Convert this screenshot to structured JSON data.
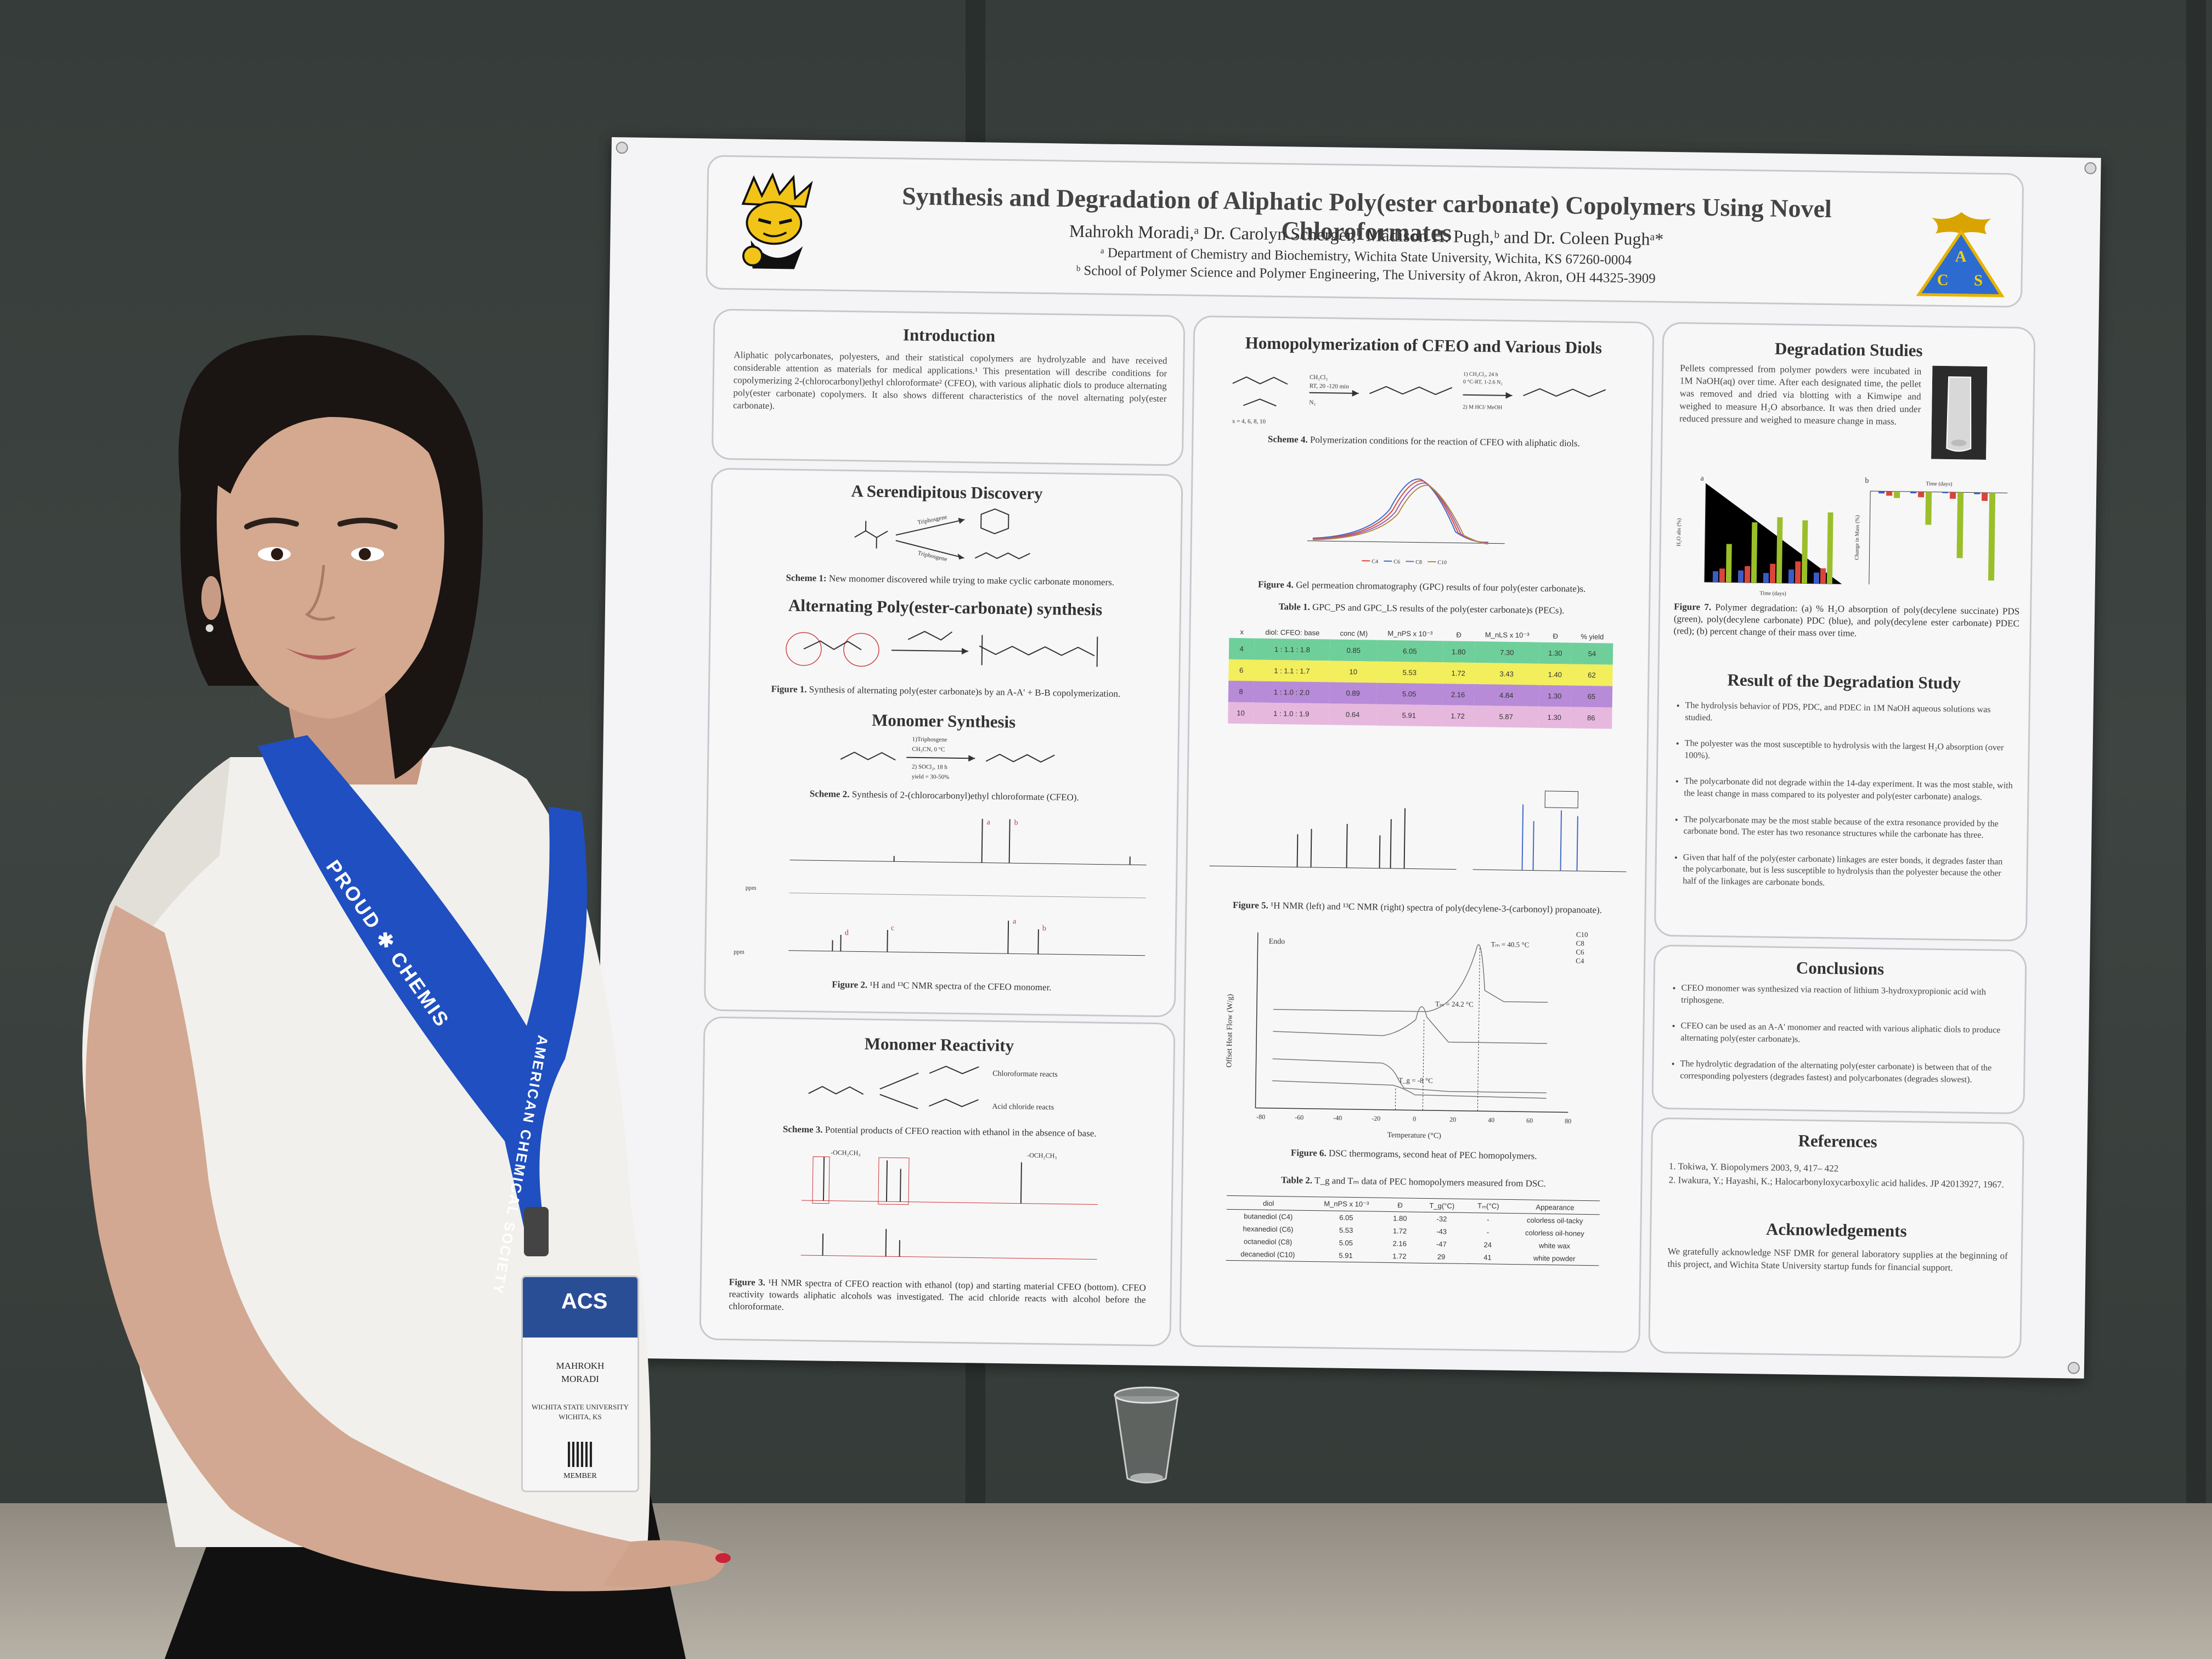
{
  "poster": {
    "title": "Synthesis and Degradation of Aliphatic Poly(ester carbonate) Copolymers Using Novel Chloroformates",
    "authors": "Mahrokh Moradi,ᵃ Dr. Carolyn Scherger,ᵇ Madison H. Pugh,ᵇ and Dr. Coleen Pughᵃ*",
    "affiliation_a": "ᵃ Department of Chemistry and Biochemistry, Wichita State University, Wichita, KS 67260-0004",
    "affiliation_b": "ᵇ School of Polymer Science and Polymer Engineering, The University of Akron, Akron, OH 44325-3909",
    "acs_logo_letters": [
      "A",
      "C",
      "S"
    ],
    "introduction": {
      "heading": "Introduction",
      "text": "Aliphatic polycarbonates, polyesters, and their statistical copolymers are hydrolyzable and have received considerable attention as materials for medical applications.¹ This presentation will describe conditions for copolymerizing 2-(chlorocarbonyl)ethyl chloroformate² (CFEO), with various aliphatic diols to produce alternating poly(ester carbonate) copolymers. It also shows different characteristics of the novel alternating poly(ester carbonate)."
    },
    "serendipitous": {
      "heading": "A Serendipitous Discovery",
      "scheme_label": "Scheme 1:",
      "scheme_text": "New monomer discovered while trying to make cyclic carbonate monomers.",
      "reagent_1": "Triphosgene",
      "reagent_2": "Triphosgene"
    },
    "alternating": {
      "heading": "Alternating Poly(ester-carbonate) synthesis",
      "figure_label": "Figure 1.",
      "figure_text": "Synthesis of alternating poly(ester carbonate)s by an A-A' + B-B copolymerization."
    },
    "monomer_synthesis": {
      "heading": "Monomer Synthesis",
      "conditions": [
        "1)Triphosgene",
        "CH₃CN, 0 °C",
        "2) SOCl₂, 18 h",
        "yield = 30-50%"
      ],
      "scheme_label": "Scheme 2.",
      "scheme_text": "Synthesis of 2-(chlorocarbonyl)ethyl chloroformate (CFEO).",
      "figure_label": "Figure 2.",
      "figure_text": "¹H and ¹³C NMR spectra of the CFEO monomer.",
      "peak_labels": [
        "a",
        "b",
        "c",
        "d",
        "a",
        "b"
      ],
      "axis_unit": "ppm"
    },
    "monomer_reactivity": {
      "heading": "Monomer Reactivity",
      "labels": [
        "Chloroformate reacts",
        "Acid chloride reacts"
      ],
      "scheme_label": "Scheme 3.",
      "scheme_text": "Potential products of CFEO reaction with ethanol in the absence of base.",
      "figure_label": "Figure 3.",
      "figure_text": "¹H NMR spectra of CFEO reaction with ethanol (top) and starting material CFEO (bottom). CFEO reactivity towards aliphatic alcohols was investigated. The acid chloride reacts with alcohol before the chloroformate.",
      "spectrum_labels": [
        "-OCH₂CH₃",
        "-OCH₂CH₃"
      ]
    },
    "homopolymerization": {
      "heading": "Homopolymerization of CFEO and Various Diols",
      "conditions_1": [
        "CH₂Cl₂",
        "RT, 20 -120 min",
        "N₂"
      ],
      "conditions_2": [
        "1) CH₂Cl₂, 24 h",
        "0 °C-RT, 1-2.6 N₂",
        "2) M HCl/ MeOH"
      ],
      "x_values": "x = 4, 6, 8, 10",
      "scheme_label": "Scheme 4.",
      "scheme_text": "Polymerization conditions for the reaction of CFEO with aliphatic diols.",
      "gpc_label": "Figure 4.",
      "gpc_text": "Gel permeation chromatography (GPC) results of four poly(ester carbonate)s.",
      "gpc_legend": [
        "C4",
        "C6",
        "C8",
        "C10"
      ],
      "table1_label": "Table 1.",
      "table1_text": "GPC_PS and GPC_LS results of the poly(ester carbonate)s (PECs).",
      "table1_headers": [
        "x",
        "diol: CFEO: base",
        "conc (M)",
        "M_nPS x 10⁻³",
        "Đ",
        "M_nLS x 10⁻³",
        "Đ",
        "% yield"
      ],
      "table1_rows": [
        [
          "4",
          "1 : 1.1 : 1.8",
          "0.85",
          "6.05",
          "1.80",
          "7.30",
          "1.30",
          "54"
        ],
        [
          "6",
          "1 : 1.1 : 1.7",
          "10",
          "5.53",
          "1.72",
          "3.43",
          "1.40",
          "62"
        ],
        [
          "8",
          "1 : 1.0 : 2.0",
          "0.89",
          "5.05",
          "2.16",
          "4.84",
          "1.30",
          "65"
        ],
        [
          "10",
          "1 : 1.0 : 1.9",
          "0.64",
          "5.91",
          "1.72",
          "5.87",
          "1.30",
          "86"
        ]
      ],
      "table1_row_colors": [
        "#6fcf9b",
        "#f2ee5c",
        "#b78bd8",
        "#e7b8de"
      ],
      "nmr_label": "Figure 5.",
      "nmr_text": "¹H NMR (left) and ¹³C NMR (right) spectra of poly(decylene-3-(carbonoyl) propanoate).",
      "dsc_endo": "Endo",
      "dsc_legend": [
        "C10",
        "C8",
        "C6",
        "C4"
      ],
      "dsc_annotations": [
        "Tₘ = 40.5 °C",
        "Tₘ = 24.2 °C",
        "T_g = -8 °C"
      ],
      "dsc_ylabel": "Offset Heat Flow (W/g)",
      "dsc_xlabel": "Temperature (°C)",
      "dsc_ticks": [
        "-80",
        "-60",
        "-40",
        "-20",
        "0",
        "20",
        "40",
        "60",
        "80"
      ],
      "dsc_label": "Figure 6.",
      "dsc_text": "DSC thermograms, second heat of PEC homopolymers.",
      "table2_label": "Table 2.",
      "table2_text": "T_g and Tₘ data of PEC homopolymers measured from DSC.",
      "table2_headers": [
        "diol",
        "M_nPS x 10⁻³",
        "Đ",
        "T_g(°C)",
        "Tₘ(°C)",
        "Appearance"
      ],
      "table2_rows": [
        [
          "butanediol (C4)",
          "6.05",
          "1.80",
          "-32",
          "-",
          "colorless oil-tacky"
        ],
        [
          "hexanediol (C6)",
          "5.53",
          "1.72",
          "-43",
          "-",
          "colorless oil-honey"
        ],
        [
          "octanediol (C8)",
          "5.05",
          "2.16",
          "-47",
          "24",
          "white wax"
        ],
        [
          "decanediol (C10)",
          "5.91",
          "1.72",
          "29",
          "41",
          "white powder"
        ]
      ]
    },
    "degradation": {
      "heading": "Degradation Studies",
      "text": "Pellets compressed from polymer powders were incubated in 1M NaOH(aq) over time. After each designated time, the pellet was removed and dried via blotting with a Kimwipe and weighed to measure H₂O absorbance. It was then dried under reduced pressure and weighed to measure change in mass.",
      "chart_a_label": "a",
      "chart_b_label": "b",
      "chart_a_ylabel": "H₂O abs (%)",
      "chart_a_xlabel": "Time (days)",
      "chart_b_ylabel": "Change in Mass (%)",
      "chart_b_xlabel": "Time (days)",
      "figure_label": "Figure 7.",
      "figure_text": "Polymer degradation: (a) % H₂O absorption of poly(decylene succinate) PDS (green), poly(decylene carbonate) PDC (blue), and poly(decylene ester carbonate) PDEC (red); (b) percent change of their mass over time."
    },
    "results": {
      "heading": "Result of the Degradation Study",
      "bullets": [
        "The hydrolysis behavior of PDS, PDC, and PDEC in 1M NaOH aqueous solutions was studied.",
        "The polyester was the most susceptible to hydrolysis with the largest H₂O absorption (over 100%).",
        "The polycarbonate did not degrade within the 14-day experiment. It was the most stable, with the least change in mass compared to its polyester and poly(ester carbonate) analogs.",
        "The polycarbonate may be the most stable because of the extra resonance provided by the carbonate bond. The ester has two resonance structures while the carbonate has three.",
        "Given that half of the poly(ester carbonate) linkages are ester bonds, it degrades faster than the polycarbonate, but is less susceptible to hydrolysis than the polyester because the other half of the linkages are carbonate bonds."
      ]
    },
    "conclusions": {
      "heading": "Conclusions",
      "bullets": [
        "CFEO monomer was synthesized via reaction of lithium 3-hydroxypropionic acid with triphosgene.",
        "CFEO can be used as an A-A' monomer and reacted with various aliphatic diols to produce alternating poly(ester carbonate)s.",
        "The hydrolytic degradation of the alternating poly(ester carbonate) is between that of the corresponding polyesters (degrades fastest) and polycarbonates (degrades slowest)."
      ]
    },
    "references": {
      "heading": "References",
      "items": [
        "1. Tokiwa, Y. Biopolymers 2003, 9, 417– 422",
        "2. Iwakura, Y.; Hayashi, K.; Halocarbonyloxycarboxylic acid halides. JP 42013927, 1967."
      ]
    },
    "acknowledgements": {
      "heading": "Acknowledgements",
      "text": "We gratefully acknowledge NSF DMR for general laboratory supplies at the beginning of this project, and Wichita State University startup funds for financial support."
    }
  },
  "badge": {
    "event": "ACS",
    "name_line1": "MAHROKH",
    "name_line2": "MORADI",
    "affiliation_line1": "WICHITA STATE UNIVERSITY",
    "affiliation_line2": "WICHITA, KS",
    "member": "MEMBER"
  },
  "lanyard": {
    "text_left": "PROUD ✱ CHEMIS",
    "text_right": "AMERICAN CHEMICAL SOCIETY"
  },
  "colors": {
    "board": "#3a3f3c",
    "poster": "#f4f4f6",
    "lanyard": "#1f4fc0",
    "shirt": "#f2f0ec",
    "hair": "#1a1412",
    "skin": "#caa08a"
  }
}
